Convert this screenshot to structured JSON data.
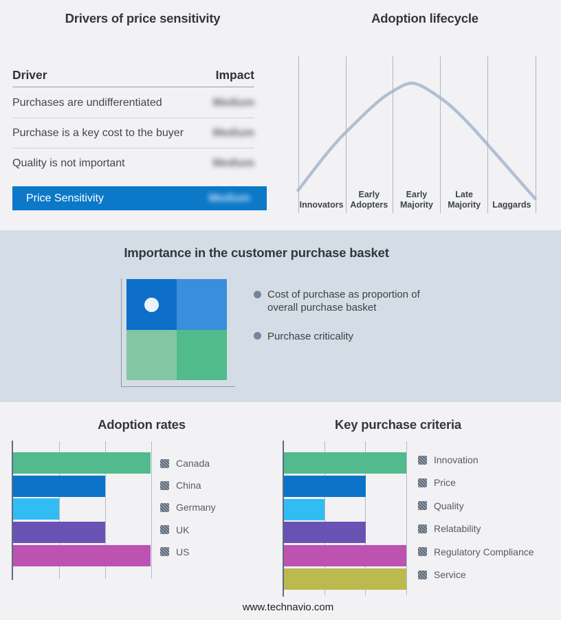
{
  "page": {
    "background": "#f2f2f4",
    "band_background": "#d4dde6",
    "footer": "www.technavio.com"
  },
  "drivers_table": {
    "title": "Drivers of price sensitivity",
    "columns": {
      "driver": "Driver",
      "impact": "Impact"
    },
    "rows": [
      {
        "driver": "Purchases are undifferentiated",
        "impact": "Medium"
      },
      {
        "driver": "Purchase is a key cost to the buyer",
        "impact": "Medium"
      },
      {
        "driver": "Quality is not important",
        "impact": "Medium"
      }
    ],
    "highlight_row": {
      "driver": "Price Sensitivity",
      "impact": "Medium",
      "background": "#0b78c8"
    }
  },
  "basket": {
    "title": "Importance in the customer purchase basket",
    "bullets": [
      "Cost of purchase as proportion of overall purchase basket",
      "Purchase criticality"
    ],
    "quadrant_colors": {
      "top_left": "#0d6fc8",
      "top_right": "#3a8edb",
      "bottom_left": "#82c6a4",
      "bottom_right": "#51bb8a",
      "marker_dot": "#e9f3fa"
    }
  },
  "chart_data": [
    {
      "id": "adoption-lifecycle",
      "type": "line",
      "title": "Adoption lifecycle",
      "categories": [
        "Innovators",
        "Early Adopters",
        "Early Majority",
        "Late Majority",
        "Laggards"
      ],
      "shape": "bell curve rising from Innovators, peaking at Early Majority, falling to Laggards",
      "line_color": "#b2bfd2",
      "gridlines": "vertical stage dividers, no y axis"
    },
    {
      "id": "adoption-rates",
      "type": "bar",
      "title": "Adoption rates",
      "orientation": "horizontal",
      "categories": [
        "Canada",
        "China",
        "Germany",
        "UK",
        "US"
      ],
      "values": [
        3,
        2,
        1,
        2,
        3
      ],
      "xlim": [
        0,
        3
      ],
      "colors": [
        "#52ba8d",
        "#0b74c8",
        "#31bdf4",
        "#6a52b4",
        "#bd52b1"
      ],
      "legend_position": "right",
      "grid": true
    },
    {
      "id": "key-purchase-criteria",
      "type": "bar",
      "title": "Key purchase criteria",
      "orientation": "horizontal",
      "categories": [
        "Innovation",
        "Price",
        "Quality",
        "Relatability",
        "Regulatory Compliance",
        "Service"
      ],
      "values": [
        3,
        2,
        1,
        2,
        3,
        3
      ],
      "xlim": [
        0,
        3
      ],
      "colors": [
        "#52ba8d",
        "#0b74c8",
        "#31bdf4",
        "#6a52b4",
        "#bd52b1",
        "#bcb94e"
      ],
      "legend_position": "right",
      "grid": true
    }
  ]
}
